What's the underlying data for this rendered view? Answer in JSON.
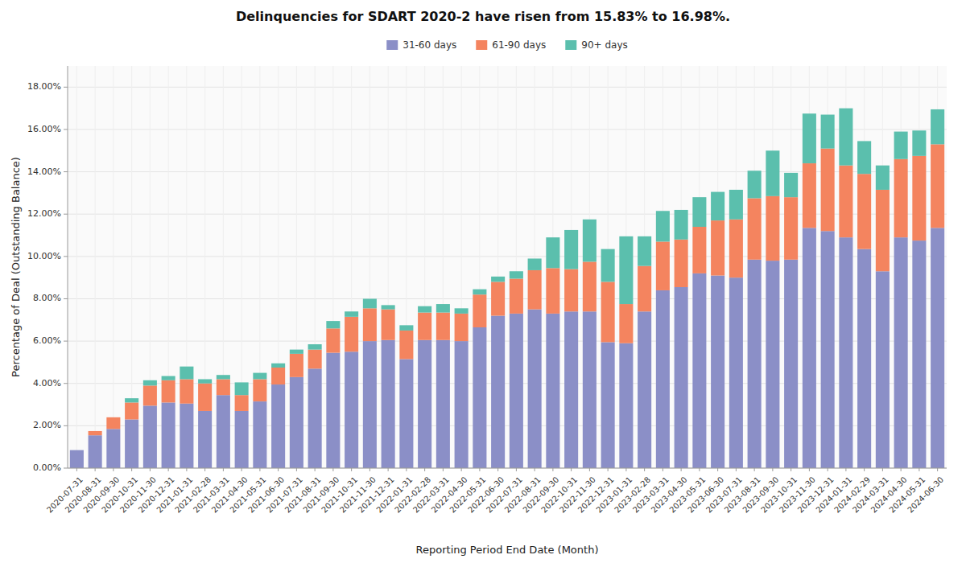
{
  "chart_data": {
    "type": "bar",
    "stacked": true,
    "title": "Delinquencies for SDART 2020-2 have risen from 15.83% to 16.98%.",
    "x_label": "Reporting Period End Date (Month)",
    "y_label": "Percentage of Deal (Outstanding Balance)",
    "categories": [
      "2020-07-31",
      "2020-08-31",
      "2020-09-30",
      "2020-10-31",
      "2020-11-30",
      "2020-12-31",
      "2021-01-31",
      "2021-02-28",
      "2021-03-31",
      "2021-04-30",
      "2021-05-31",
      "2021-06-30",
      "2021-07-31",
      "2021-08-31",
      "2021-09-30",
      "2021-10-31",
      "2021-11-30",
      "2021-12-31",
      "2022-01-31",
      "2022-02-28",
      "2022-03-31",
      "2022-04-30",
      "2022-05-31",
      "2022-06-30",
      "2022-07-31",
      "2022-08-31",
      "2022-09-30",
      "2022-10-31",
      "2022-11-30",
      "2022-12-31",
      "2023-01-31",
      "2023-02-28",
      "2023-03-31",
      "2023-04-30",
      "2023-05-31",
      "2023-06-30",
      "2023-07-31",
      "2023-08-31",
      "2023-09-30",
      "2023-10-31",
      "2023-11-30",
      "2023-12-31",
      "2024-01-31",
      "2024-02-29",
      "2024-03-31",
      "2024-04-30",
      "2024-05-31",
      "2024-06-30"
    ],
    "series": [
      {
        "name": "31-60 days",
        "color": "#8b8fc7",
        "values": [
          0.0085,
          0.0155,
          0.0185,
          0.023,
          0.0295,
          0.031,
          0.0305,
          0.027,
          0.0345,
          0.027,
          0.0315,
          0.0395,
          0.043,
          0.047,
          0.0545,
          0.055,
          0.06,
          0.0605,
          0.0515,
          0.0605,
          0.0605,
          0.06,
          0.0665,
          0.072,
          0.073,
          0.075,
          0.073,
          0.074,
          0.074,
          0.0595,
          0.059,
          0.074,
          0.084,
          0.0855,
          0.092,
          0.091,
          0.09,
          0.0985,
          0.098,
          0.0985,
          0.1135,
          0.112,
          0.109,
          0.1035,
          0.093,
          0.109,
          0.1075,
          0.1135
        ]
      },
      {
        "name": "61-90 days",
        "color": "#f4845f",
        "values": [
          0.0,
          0.002,
          0.0055,
          0.008,
          0.0095,
          0.0105,
          0.0115,
          0.013,
          0.0075,
          0.0075,
          0.0105,
          0.008,
          0.011,
          0.009,
          0.0115,
          0.0165,
          0.0155,
          0.0145,
          0.0135,
          0.013,
          0.013,
          0.013,
          0.0155,
          0.016,
          0.0165,
          0.0185,
          0.0215,
          0.02,
          0.0235,
          0.0285,
          0.0185,
          0.0215,
          0.023,
          0.0225,
          0.022,
          0.026,
          0.0275,
          0.029,
          0.0305,
          0.0295,
          0.0305,
          0.039,
          0.034,
          0.0355,
          0.0385,
          0.037,
          0.04,
          0.0395
        ]
      },
      {
        "name": "90+ days",
        "color": "#5bbfad",
        "values": [
          0.0,
          0.0,
          0.0,
          0.002,
          0.0025,
          0.002,
          0.006,
          0.002,
          0.002,
          0.006,
          0.003,
          0.002,
          0.002,
          0.0025,
          0.0035,
          0.0025,
          0.0045,
          0.002,
          0.0025,
          0.003,
          0.004,
          0.0025,
          0.0025,
          0.0025,
          0.0035,
          0.0055,
          0.0145,
          0.0185,
          0.02,
          0.0155,
          0.032,
          0.014,
          0.0145,
          0.014,
          0.014,
          0.0135,
          0.014,
          0.013,
          0.0215,
          0.0115,
          0.0235,
          0.016,
          0.027,
          0.0155,
          0.0115,
          0.013,
          0.012,
          0.0165
        ]
      }
    ],
    "ylim": [
      0,
      0.19
    ],
    "yticks": [
      {
        "value": 0,
        "label": "0.00%"
      },
      {
        "value": 0.02,
        "label": "2.00%"
      },
      {
        "value": 0.04,
        "label": "4.00%"
      },
      {
        "value": 0.06,
        "label": "6.00%"
      },
      {
        "value": 0.08,
        "label": "8.00%"
      },
      {
        "value": 0.1,
        "label": "10.00%"
      },
      {
        "value": 0.12,
        "label": "12.00%"
      },
      {
        "value": 0.14,
        "label": "14.00%"
      },
      {
        "value": 0.16,
        "label": "16.00%"
      },
      {
        "value": 0.18,
        "label": "18.00%"
      }
    ],
    "grid": true,
    "legend": "upper center"
  }
}
